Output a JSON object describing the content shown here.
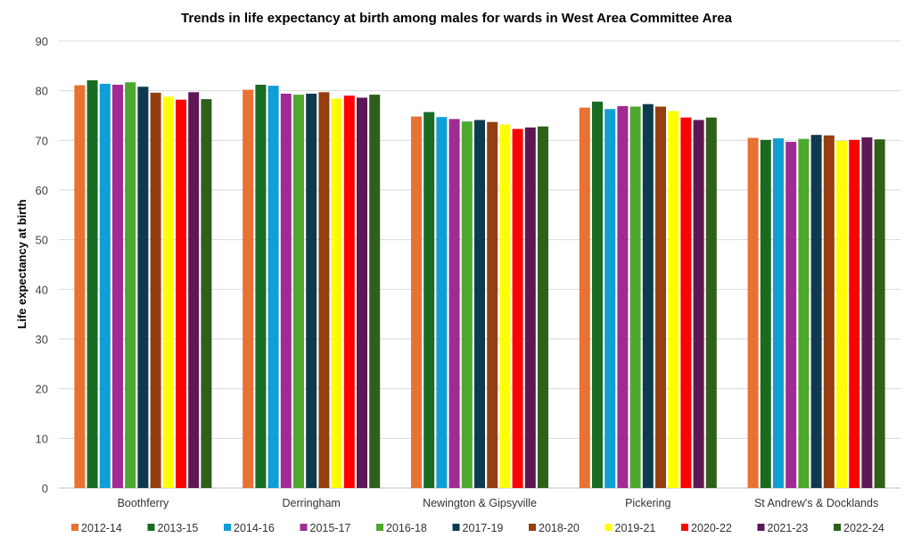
{
  "chart_data": {
    "type": "bar",
    "title": "Trends in life expectancy at birth among males for wards in West Area Committee Area",
    "xlabel": "",
    "ylabel": "Life expectancy at birth",
    "ylim": [
      0,
      90
    ],
    "yticks": [
      0,
      10,
      20,
      30,
      40,
      50,
      60,
      70,
      80,
      90
    ],
    "grid": true,
    "legend_position": "bottom",
    "categories": [
      "Boothferry",
      "Derringham",
      "Newington & Gipsyville",
      "Pickering",
      "St Andrew's & Docklands"
    ],
    "series": [
      {
        "name": "2012-14",
        "color": "#E97132",
        "values": [
          81.1,
          80.2,
          74.8,
          76.6,
          70.5
        ]
      },
      {
        "name": "2013-15",
        "color": "#196B24",
        "values": [
          82.1,
          81.2,
          75.7,
          77.8,
          70.1
        ]
      },
      {
        "name": "2014-16",
        "color": "#0F9ED5",
        "values": [
          81.4,
          81.0,
          74.7,
          76.3,
          70.4
        ]
      },
      {
        "name": "2015-17",
        "color": "#A02B93",
        "values": [
          81.2,
          79.4,
          74.3,
          76.9,
          69.7
        ]
      },
      {
        "name": "2016-18",
        "color": "#4EA72E",
        "values": [
          81.7,
          79.2,
          73.8,
          76.8,
          70.3
        ]
      },
      {
        "name": "2017-19",
        "color": "#0E3A4F",
        "values": [
          80.8,
          79.4,
          74.1,
          77.3,
          71.1
        ]
      },
      {
        "name": "2018-20",
        "color": "#963E10",
        "values": [
          79.6,
          79.7,
          73.7,
          76.8,
          71.0
        ]
      },
      {
        "name": "2019-21",
        "color": "#FFFF00",
        "values": [
          78.8,
          78.4,
          73.2,
          75.9,
          69.9
        ]
      },
      {
        "name": "2020-22",
        "color": "#FF0000",
        "values": [
          78.2,
          79.0,
          72.3,
          74.6,
          70.1
        ]
      },
      {
        "name": "2021-23",
        "color": "#5E1755",
        "values": [
          79.7,
          78.6,
          72.6,
          74.1,
          70.6
        ]
      },
      {
        "name": "2022-24",
        "color": "#2E6019",
        "values": [
          78.3,
          79.2,
          72.8,
          74.6,
          70.2
        ]
      }
    ]
  }
}
